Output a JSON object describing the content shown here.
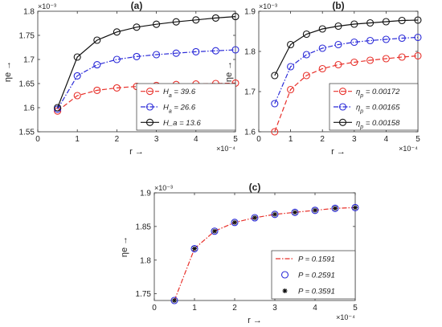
{
  "chart_data": [
    {
      "panel": "(a)",
      "type": "line",
      "title": "(a)",
      "xlabel": "r  →",
      "ylabel": "ηe →",
      "x_multiplier": "×10⁻⁴",
      "y_multiplier": "×10⁻³",
      "xlim": [
        0,
        5
      ],
      "ylim": [
        1.55,
        1.8
      ],
      "xticks": [
        "0",
        "1",
        "2",
        "3",
        "4",
        "5"
      ],
      "yticks": [
        "1.55",
        "1.6",
        "1.65",
        "1.7",
        "1.75",
        "1.8"
      ],
      "ytick_values": [
        1.55,
        1.6,
        1.65,
        1.7,
        1.75,
        1.8
      ],
      "grid": false,
      "legend_position": "bottom-right",
      "x": [
        0.5,
        1,
        1.5,
        2,
        2.5,
        3,
        3.5,
        4,
        4.5,
        5
      ],
      "series": [
        {
          "name": "H_a = 39.6",
          "legend_main": "H",
          "legend_sub": "a",
          "legend_rest": " = 39.6",
          "color": "#e8302a",
          "dash": "6,3",
          "marker": "circle",
          "values": [
            1.593,
            1.625,
            1.636,
            1.641,
            1.644,
            1.646,
            1.648,
            1.649,
            1.65,
            1.651
          ]
        },
        {
          "name": "H_a = 26.6",
          "legend_main": "H",
          "legend_sub": "a",
          "legend_rest": " = 26.6",
          "color": "#2a2ad8",
          "dash": "6,2,1.5,2",
          "marker": "circle",
          "values": [
            1.597,
            1.666,
            1.689,
            1.7,
            1.706,
            1.71,
            1.713,
            1.716,
            1.718,
            1.72
          ]
        },
        {
          "name": "H_a = 13.6",
          "legend_main": "H_a = 13.6",
          "legend_sub": "",
          "legend_rest": "",
          "color": "#111111",
          "dash": "",
          "marker": "circle",
          "values": [
            1.6,
            1.705,
            1.74,
            1.757,
            1.767,
            1.773,
            1.778,
            1.782,
            1.786,
            1.789
          ]
        }
      ]
    },
    {
      "panel": "(b)",
      "type": "line",
      "title": "(b)",
      "xlabel": "r  →",
      "ylabel": "ηe →",
      "x_multiplier": "×10⁻⁴",
      "y_multiplier": "×10⁻³",
      "xlim": [
        0,
        5
      ],
      "ylim": [
        1.6,
        1.9
      ],
      "xticks": [
        "0",
        "1",
        "2",
        "3",
        "4",
        "5"
      ],
      "yticks": [
        "1.6",
        "1.7",
        "1.8",
        "1.9"
      ],
      "ytick_values": [
        1.6,
        1.7,
        1.8,
        1.9
      ],
      "grid": false,
      "legend_position": "bottom-right",
      "x": [
        0.5,
        1,
        1.5,
        2,
        2.5,
        3,
        3.5,
        4,
        4.5,
        5
      ],
      "series": [
        {
          "name": "ηp = 0.00172",
          "legend_main": "η",
          "legend_sub": "p",
          "legend_rest": " = 0.00172",
          "color": "#e8302a",
          "dash": "6,3",
          "marker": "circle",
          "values": [
            1.6,
            1.705,
            1.74,
            1.757,
            1.767,
            1.773,
            1.778,
            1.782,
            1.786,
            1.789
          ]
        },
        {
          "name": "ηp = 0.00165",
          "legend_main": "η",
          "legend_sub": "p",
          "legend_rest": " = 0.00165",
          "color": "#2a2ad8",
          "dash": "6,2,1.5,2",
          "marker": "circle",
          "values": [
            1.67,
            1.762,
            1.792,
            1.808,
            1.817,
            1.823,
            1.827,
            1.83,
            1.833,
            1.835
          ]
        },
        {
          "name": "ηp = 0.00158",
          "legend_main": "η",
          "legend_sub": "p",
          "legend_rest": " = 0.00158",
          "color": "#111111",
          "dash": "",
          "marker": "circle",
          "values": [
            1.74,
            1.817,
            1.843,
            1.856,
            1.863,
            1.868,
            1.871,
            1.874,
            1.877,
            1.878
          ]
        }
      ]
    },
    {
      "panel": "(c)",
      "type": "line",
      "title": "(c)",
      "xlabel": "r  →",
      "ylabel": "ηe →",
      "x_multiplier": "×10⁻⁴",
      "y_multiplier": "×10⁻³",
      "xlim": [
        0,
        5
      ],
      "ylim": [
        1.74,
        1.9
      ],
      "xticks": [
        "0",
        "1",
        "2",
        "3",
        "4",
        "5"
      ],
      "yticks": [
        "1.75",
        "1.8",
        "1.85",
        "1.9"
      ],
      "ytick_values": [
        1.75,
        1.8,
        1.85,
        1.9
      ],
      "grid": false,
      "legend_position": "bottom-right",
      "x": [
        0.5,
        1,
        1.5,
        2,
        2.5,
        3,
        3.5,
        4,
        4.5,
        5
      ],
      "series": [
        {
          "name": "P = 0.1591",
          "legend_main": "P = 0.1591",
          "legend_sub": "",
          "legend_rest": "",
          "color": "#e8302a",
          "dash": "6,2,1.5,2",
          "marker": "none",
          "values": [
            1.74,
            1.817,
            1.843,
            1.856,
            1.863,
            1.868,
            1.871,
            1.874,
            1.877,
            1.878
          ]
        },
        {
          "name": "P = 0.2591",
          "legend_main": "P = 0.2591",
          "legend_sub": "",
          "legend_rest": "",
          "color": "#2a2ad8",
          "dash": "none",
          "marker": "circle",
          "values": [
            1.74,
            1.817,
            1.843,
            1.856,
            1.863,
            1.868,
            1.871,
            1.874,
            1.877,
            1.878
          ]
        },
        {
          "name": "P = 0.3591",
          "legend_main": "P = 0.3591",
          "legend_sub": "",
          "legend_rest": "",
          "color": "#111111",
          "dash": "none",
          "marker": "star",
          "values": [
            1.74,
            1.817,
            1.843,
            1.856,
            1.863,
            1.868,
            1.871,
            1.874,
            1.877,
            1.878
          ]
        }
      ]
    }
  ]
}
